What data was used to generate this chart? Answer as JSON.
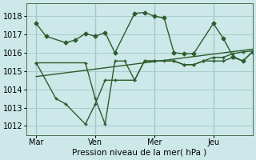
{
  "background_color": "#cce8e8",
  "grid_color": "#a8cccc",
  "line_color": "#2d5c2d",
  "ylabel": "Pression niveau de la mer( hPa )",
  "ylim": [
    1011.5,
    1018.7
  ],
  "yticks": [
    1012,
    1013,
    1014,
    1015,
    1016,
    1017,
    1018
  ],
  "xtick_labels": [
    "Mar",
    "Ven",
    "Mer",
    "Jeu"
  ],
  "xtick_positions": [
    0,
    24,
    48,
    72
  ],
  "vline_positions": [
    0,
    24,
    48,
    72
  ],
  "xlim": [
    -4,
    88
  ],
  "line1_x": [
    0,
    4,
    12,
    16,
    20,
    24,
    28,
    32,
    40,
    44,
    48,
    52,
    56,
    60,
    64,
    72,
    76,
    80,
    84,
    88
  ],
  "line1_y": [
    1017.6,
    1016.9,
    1016.55,
    1016.7,
    1017.05,
    1016.9,
    1017.1,
    1016.0,
    1018.15,
    1018.2,
    1018.0,
    1017.9,
    1016.0,
    1015.95,
    1015.95,
    1017.6,
    1016.8,
    1015.8,
    1015.55,
    1016.05
  ],
  "line2_x": [
    0,
    20,
    24,
    28,
    32,
    36,
    40,
    44,
    48,
    56,
    60,
    64,
    68,
    72,
    76,
    80,
    84,
    88
  ],
  "line2_y": [
    1015.45,
    1015.45,
    1013.5,
    1012.1,
    1015.55,
    1015.55,
    1014.5,
    1015.55,
    1015.55,
    1015.55,
    1015.35,
    1015.35,
    1015.55,
    1015.55,
    1015.55,
    1015.75,
    1015.55,
    1016.05
  ],
  "line3_x": [
    0,
    8,
    12,
    20,
    24,
    28,
    32,
    40,
    44,
    48,
    52,
    56,
    60,
    64,
    68,
    72,
    76,
    80,
    84,
    88
  ],
  "line3_y": [
    1015.45,
    1013.5,
    1013.2,
    1012.1,
    1013.2,
    1014.5,
    1014.5,
    1014.5,
    1015.55,
    1015.55,
    1015.55,
    1015.55,
    1015.35,
    1015.35,
    1015.55,
    1015.75,
    1015.75,
    1015.95,
    1016.05,
    1016.1
  ],
  "line4_x": [
    0,
    88
  ],
  "line4_y": [
    1014.7,
    1016.2
  ]
}
